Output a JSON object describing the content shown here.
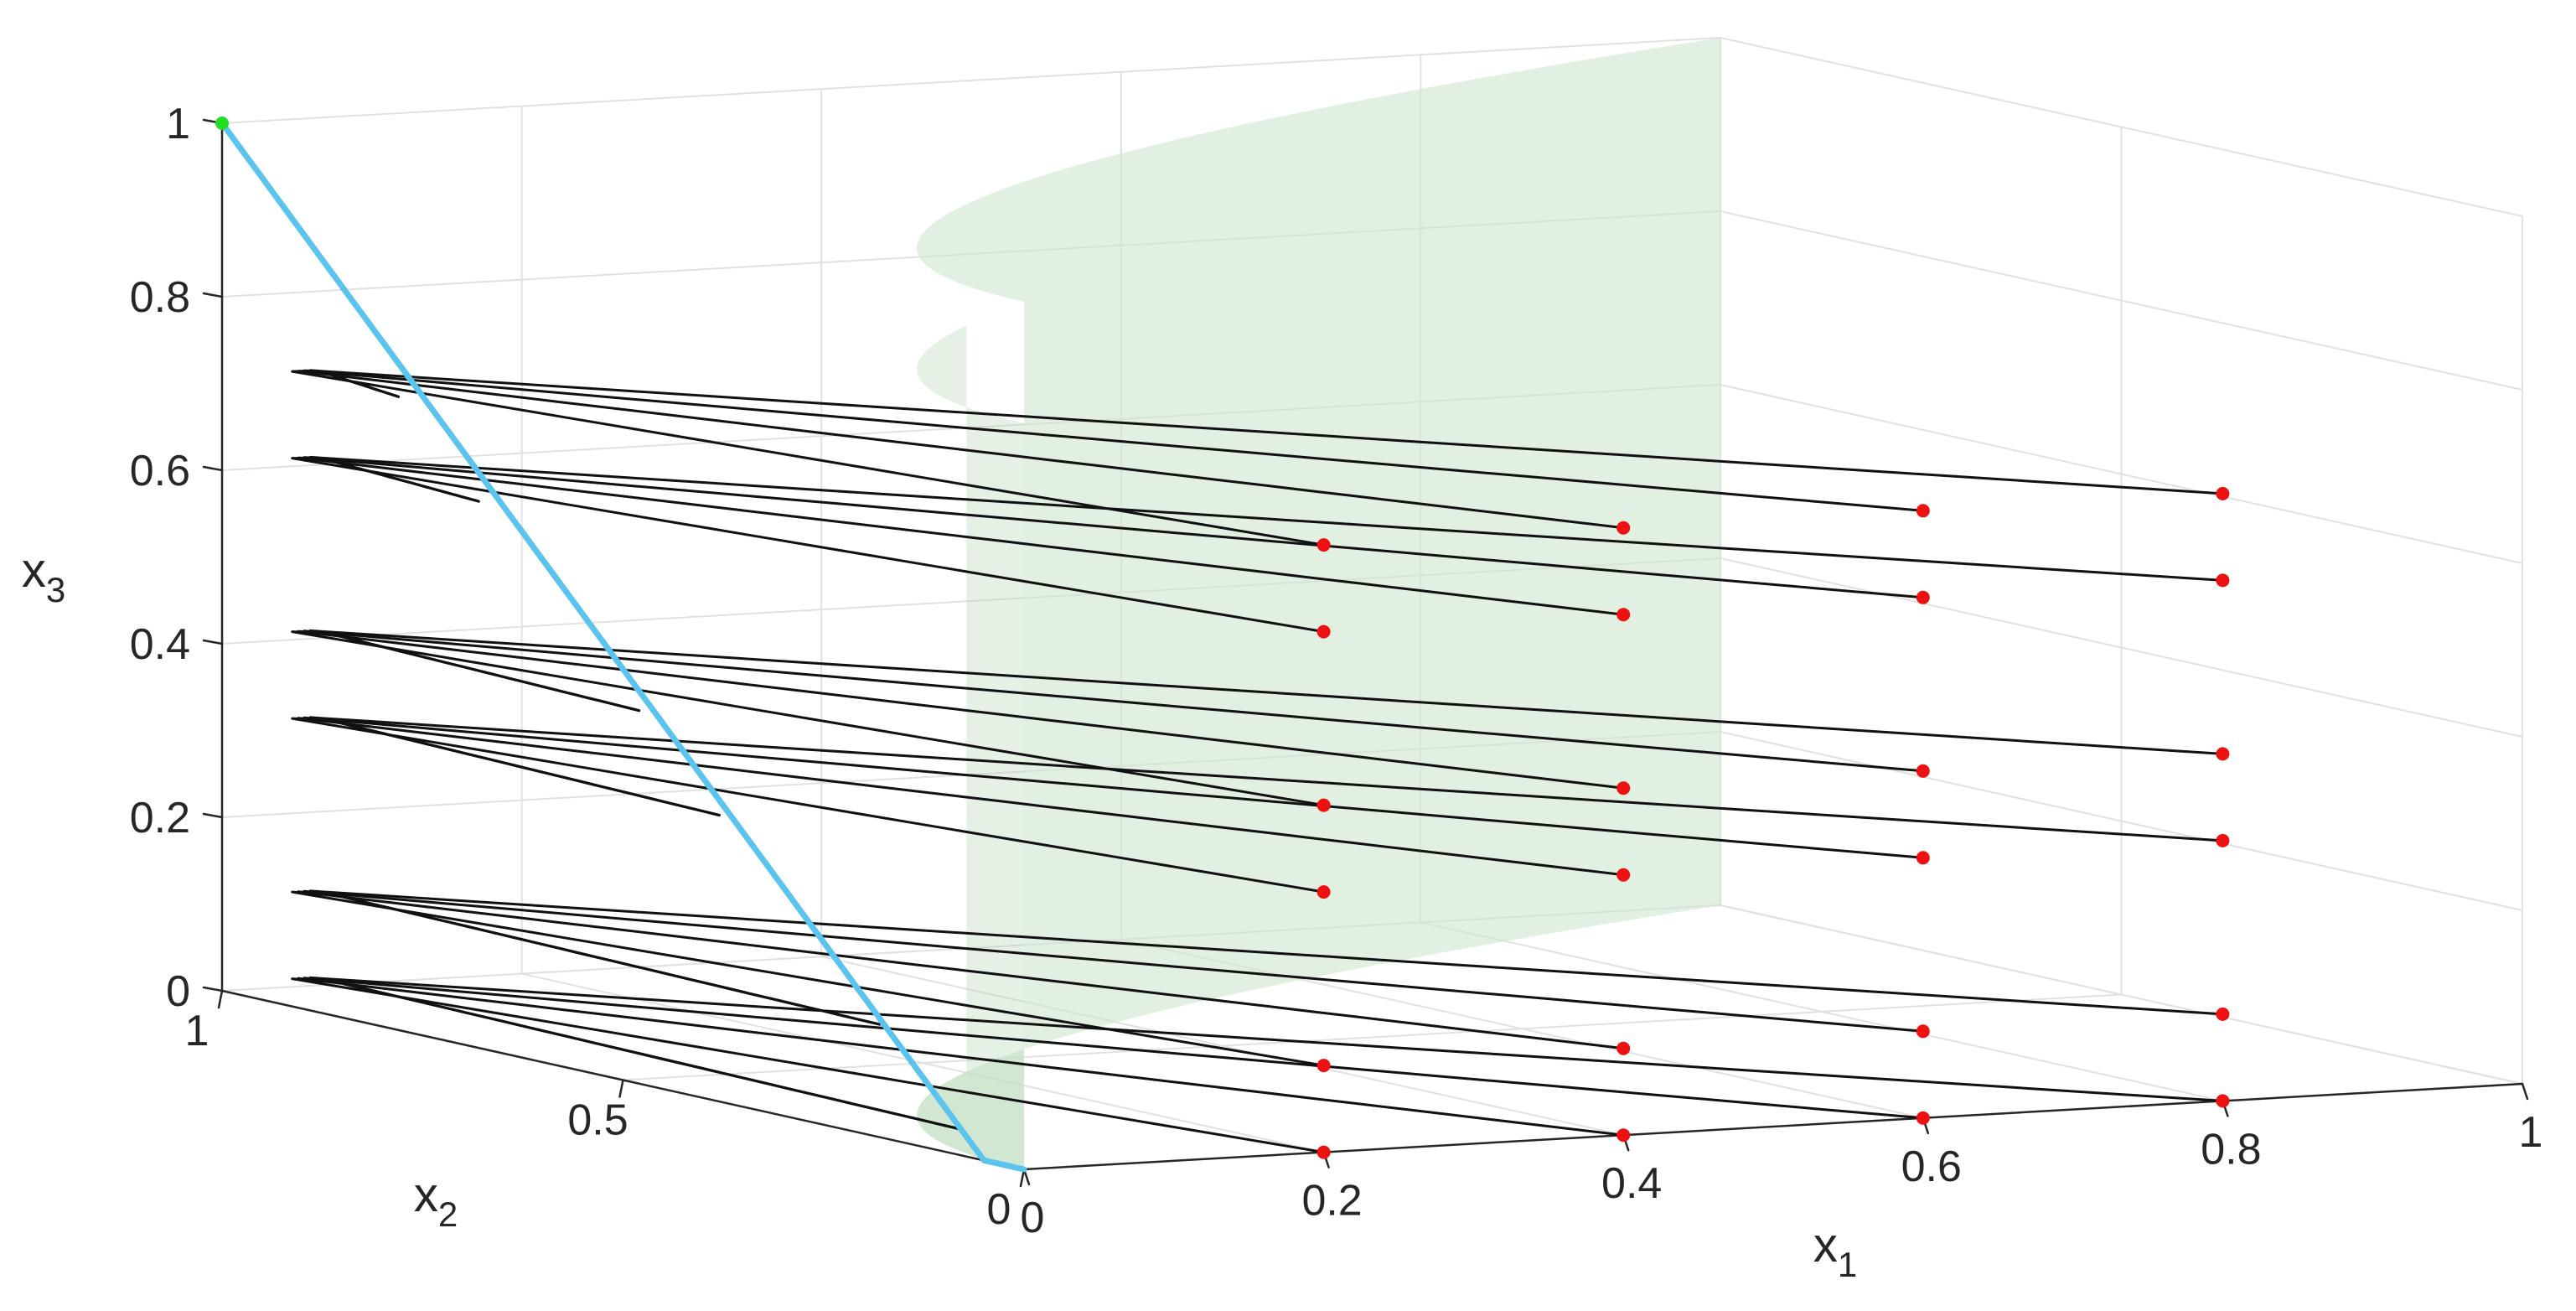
{
  "chart_data": {
    "type": "line3d",
    "x1": {
      "label": "x",
      "subscript": "1",
      "ticks": [
        "0",
        "0.2",
        "0.4",
        "0.6",
        "0.8",
        "1"
      ],
      "range": [
        0,
        1
      ]
    },
    "x2": {
      "label": "x",
      "subscript": "2",
      "ticks": [
        "0",
        "0.5",
        "1"
      ],
      "range": [
        0,
        1
      ]
    },
    "x3": {
      "label": "x",
      "subscript": "3",
      "ticks": [
        "0",
        "0.2",
        "0.4",
        "0.6",
        "0.8",
        "1"
      ],
      "range": [
        0,
        1
      ]
    },
    "grid": true,
    "colors": {
      "surface": "#cfe6cf",
      "diagonal": "#5bc4ee",
      "trajectory": "#111111",
      "start_point": "#ee1111",
      "end_point": "#22dd22",
      "axis": "#262626",
      "grid": "#e1e1e1"
    },
    "end_point": [
      0,
      1,
      1
    ],
    "start_x1": [
      0.2,
      0.4,
      0.6,
      0.8
    ],
    "start_x3": [
      0.1,
      0.4,
      0.7
    ],
    "start_x3_front": [
      0.0,
      0.3,
      0.6
    ],
    "start_x2": 0
  }
}
